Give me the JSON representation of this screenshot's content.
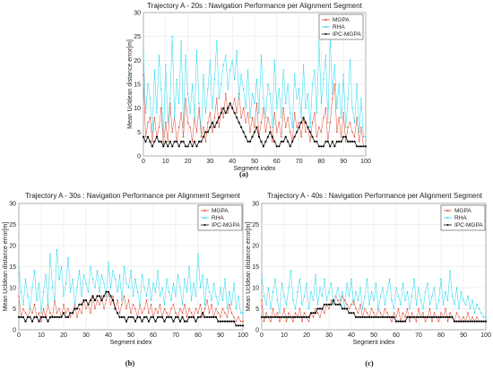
{
  "colors": {
    "MGPA": "#e0442c",
    "RHA": "#22d8f0",
    "IPC-MGPA": "#000000"
  },
  "chart_data": [
    {
      "type": "line",
      "panel_label": "(a)",
      "title": "Trajectory A - 20s : Navigation Performance per Alignment Segment",
      "xlabel": "Segment index",
      "ylabel": "Mean Ucldean distance error[m]",
      "xlim": [
        0,
        100
      ],
      "ylim": [
        0,
        30
      ],
      "xticks": [
        "0",
        "10",
        "20",
        "30",
        "40",
        "50",
        "60",
        "70",
        "80",
        "90",
        "100"
      ],
      "yticks": [
        "0",
        "5",
        "10",
        "15",
        "20",
        "25",
        "30"
      ],
      "grid": true,
      "legend": "top-right",
      "series": [
        {
          "name": "MGPA",
          "values": [
            17,
            4,
            7,
            8,
            3,
            8,
            4,
            6,
            10,
            2,
            7,
            3,
            11,
            5,
            8,
            3,
            6,
            9,
            4,
            12,
            7,
            6,
            3,
            8,
            5,
            10,
            4,
            6,
            3,
            7,
            9,
            5,
            8,
            12,
            6,
            10,
            8,
            13,
            9,
            11,
            10,
            12,
            9,
            13,
            8,
            10,
            7,
            9,
            5,
            8,
            6,
            11,
            4,
            7,
            10,
            5,
            8,
            6,
            3,
            9,
            5,
            7,
            4,
            10,
            6,
            8,
            5,
            3,
            9,
            6,
            7,
            4,
            8,
            5,
            6,
            3,
            7,
            9,
            4,
            6,
            5,
            8,
            10,
            3,
            7,
            12,
            15,
            5,
            8,
            4,
            9,
            3,
            6,
            7,
            5,
            4,
            8,
            3,
            6,
            2,
            2
          ]
        },
        {
          "name": "RHA",
          "values": [
            22,
            9,
            15,
            12,
            5,
            18,
            9,
            21,
            14,
            4,
            19,
            7,
            12,
            25,
            8,
            16,
            11,
            24,
            6,
            21,
            13,
            9,
            15,
            8,
            22,
            11,
            5,
            17,
            9,
            14,
            20,
            10,
            16,
            24,
            12,
            15,
            19,
            21,
            14,
            18,
            20,
            16,
            22,
            12,
            17,
            14,
            10,
            18,
            8,
            13,
            11,
            16,
            9,
            21,
            12,
            8,
            15,
            13,
            6,
            20,
            10,
            14,
            8,
            18,
            11,
            15,
            9,
            6,
            17,
            12,
            14,
            8,
            19,
            10,
            13,
            6,
            15,
            18,
            9,
            24,
            11,
            16,
            21,
            7,
            25,
            13,
            19,
            10,
            15,
            8,
            17,
            6,
            12,
            20,
            10,
            7,
            15,
            5,
            12,
            4,
            4
          ]
        },
        {
          "name": "IPC-MGPA",
          "values": [
            4,
            3,
            4,
            3,
            2,
            3,
            4,
            3,
            3,
            2,
            3,
            2,
            3,
            2,
            3,
            3,
            2,
            3,
            3,
            2,
            2,
            3,
            2,
            3,
            2,
            3,
            3,
            4,
            5,
            5,
            6,
            7,
            6,
            7,
            8,
            9,
            10,
            9,
            10,
            11,
            10,
            9,
            8,
            7,
            6,
            5,
            4,
            3,
            3,
            4,
            5,
            6,
            4,
            3,
            2,
            3,
            4,
            5,
            4,
            3,
            2,
            2,
            3,
            3,
            4,
            3,
            2,
            3,
            4,
            5,
            6,
            7,
            8,
            7,
            6,
            5,
            4,
            3,
            3,
            2,
            2,
            2,
            3,
            3,
            2,
            3,
            2,
            3,
            3,
            3,
            4,
            4,
            3,
            3,
            3,
            3,
            2,
            2,
            2,
            2,
            2
          ]
        }
      ]
    },
    {
      "type": "line",
      "panel_label": "(b)",
      "title": "Trajectory A - 30s : Navigation Performance per Alignment Segment",
      "xlabel": "Segment index",
      "ylabel": "Mean Ucldean distance error[m]",
      "xlim": [
        0,
        100
      ],
      "ylim": [
        0,
        30
      ],
      "xticks": [
        "0",
        "10",
        "20",
        "30",
        "40",
        "50",
        "60",
        "70",
        "80",
        "90",
        "100"
      ],
      "yticks": [
        "0",
        "5",
        "10",
        "15",
        "20",
        "25",
        "30"
      ],
      "grid": true,
      "legend": "top-right",
      "series": [
        {
          "name": "MGPA",
          "values": [
            8,
            3,
            5,
            4,
            3,
            5,
            4,
            6,
            3,
            4,
            2,
            5,
            3,
            6,
            4,
            3,
            7,
            4,
            5,
            3,
            6,
            4,
            5,
            3,
            4,
            6,
            3,
            5,
            4,
            7,
            5,
            6,
            4,
            8,
            5,
            7,
            6,
            8,
            5,
            7,
            9,
            6,
            8,
            5,
            7,
            4,
            6,
            8,
            5,
            7,
            4,
            6,
            5,
            3,
            6,
            4,
            5,
            7,
            4,
            6,
            3,
            5,
            4,
            6,
            3,
            5,
            4,
            3,
            5,
            6,
            4,
            3,
            5,
            4,
            6,
            3,
            5,
            4,
            3,
            5,
            4,
            6,
            3,
            5,
            7,
            4,
            6,
            3,
            5,
            4,
            3,
            5,
            4,
            3,
            6,
            4,
            3,
            2,
            3,
            2,
            2
          ]
        },
        {
          "name": "RHA",
          "values": [
            15,
            9,
            6,
            12,
            8,
            5,
            10,
            14,
            7,
            11,
            4,
            9,
            13,
            6,
            18,
            10,
            7,
            19,
            12,
            15,
            8,
            11,
            17,
            9,
            12,
            6,
            10,
            14,
            8,
            13,
            11,
            9,
            15,
            12,
            10,
            14,
            9,
            13,
            11,
            8,
            16,
            10,
            14,
            12,
            9,
            13,
            7,
            15,
            11,
            10,
            14,
            8,
            12,
            9,
            6,
            13,
            10,
            8,
            12,
            7,
            11,
            9,
            14,
            8,
            10,
            6,
            12,
            9,
            7,
            11,
            8,
            13,
            10,
            6,
            12,
            9,
            15,
            7,
            11,
            8,
            18,
            10,
            13,
            6,
            12,
            9,
            7,
            11,
            8,
            6,
            10,
            7,
            12,
            5,
            9,
            6,
            11,
            5,
            8,
            4,
            4
          ]
        },
        {
          "name": "IPC-MGPA",
          "values": [
            3,
            3,
            3,
            2,
            3,
            3,
            2,
            3,
            3,
            2,
            3,
            3,
            3,
            2,
            3,
            3,
            3,
            3,
            3,
            3,
            4,
            3,
            3,
            4,
            4,
            5,
            5,
            6,
            6,
            7,
            7,
            6,
            7,
            8,
            7,
            8,
            8,
            7,
            8,
            9,
            9,
            8,
            7,
            5,
            4,
            3,
            3,
            3,
            2,
            3,
            3,
            3,
            2,
            3,
            3,
            2,
            3,
            3,
            2,
            3,
            3,
            2,
            3,
            3,
            3,
            2,
            3,
            3,
            3,
            2,
            3,
            3,
            2,
            3,
            2,
            2,
            3,
            3,
            3,
            2,
            3,
            3,
            4,
            3,
            3,
            3,
            3,
            3,
            3,
            2,
            2,
            2,
            2,
            2,
            2,
            2,
            2,
            1,
            1,
            1,
            1
          ]
        }
      ]
    },
    {
      "type": "line",
      "panel_label": "(c)",
      "title": "Trajectory A - 40s : Navigation Performance per Alignment Segment",
      "xlabel": "Segment index",
      "ylabel": "Mean Ucldean distance error[m]",
      "xlim": [
        0,
        100
      ],
      "ylim": [
        0,
        30
      ],
      "xticks": [
        "0",
        "10",
        "20",
        "30",
        "40",
        "50",
        "60",
        "70",
        "80",
        "90",
        "100"
      ],
      "yticks": [
        "0",
        "5",
        "10",
        "15",
        "20",
        "25",
        "30"
      ],
      "grid": true,
      "legend": "top-right",
      "series": [
        {
          "name": "MGPA",
          "values": [
            7,
            2,
            4,
            3,
            2,
            5,
            3,
            4,
            2,
            3,
            5,
            2,
            4,
            3,
            2,
            4,
            3,
            5,
            2,
            4,
            3,
            2,
            4,
            3,
            5,
            4,
            3,
            5,
            4,
            6,
            5,
            7,
            6,
            8,
            7,
            6,
            8,
            7,
            6,
            5,
            6,
            7,
            5,
            4,
            6,
            3,
            5,
            4,
            3,
            5,
            4,
            3,
            5,
            4,
            3,
            5,
            4,
            3,
            2,
            4,
            3,
            5,
            2,
            4,
            3,
            5,
            2,
            4,
            3,
            2,
            5,
            3,
            4,
            2,
            3,
            5,
            2,
            4,
            3,
            2,
            4,
            3,
            5,
            2,
            4,
            3,
            2,
            4,
            3,
            2,
            3,
            2,
            4,
            2,
            3,
            2,
            3,
            2,
            2,
            2,
            2
          ]
        },
        {
          "name": "RHA",
          "values": [
            13,
            8,
            6,
            10,
            5,
            9,
            12,
            7,
            4,
            11,
            8,
            6,
            10,
            14,
            7,
            5,
            9,
            12,
            6,
            8,
            11,
            5,
            9,
            7,
            13,
            6,
            10,
            8,
            12,
            7,
            9,
            11,
            6,
            8,
            10,
            7,
            9,
            5,
            11,
            8,
            12,
            6,
            9,
            7,
            10,
            5,
            8,
            12,
            6,
            9,
            7,
            11,
            5,
            8,
            10,
            6,
            9,
            12,
            7,
            5,
            10,
            8,
            6,
            11,
            7,
            9,
            5,
            8,
            12,
            6,
            10,
            7,
            5,
            9,
            11,
            6,
            8,
            10,
            5,
            7,
            12,
            6,
            9,
            7,
            14,
            8,
            6,
            10,
            5,
            9,
            7,
            6,
            8,
            5,
            7,
            4,
            6,
            5,
            4,
            3,
            3
          ]
        },
        {
          "name": "IPC-MGPA",
          "values": [
            3,
            3,
            3,
            3,
            3,
            3,
            3,
            3,
            3,
            3,
            3,
            3,
            3,
            3,
            3,
            3,
            3,
            3,
            3,
            3,
            3,
            3,
            4,
            4,
            4,
            5,
            5,
            5,
            6,
            6,
            6,
            6,
            7,
            6,
            6,
            6,
            5,
            5,
            5,
            4,
            4,
            4,
            3,
            3,
            3,
            3,
            3,
            3,
            3,
            3,
            3,
            3,
            3,
            3,
            3,
            3,
            3,
            3,
            3,
            3,
            2,
            2,
            2,
            2,
            2,
            3,
            3,
            3,
            3,
            3,
            3,
            3,
            3,
            3,
            3,
            3,
            3,
            3,
            3,
            3,
            3,
            3,
            3,
            3,
            3,
            3,
            2,
            2,
            2,
            2,
            2,
            2,
            2,
            2,
            2,
            2,
            2,
            2,
            2,
            2,
            2
          ]
        }
      ]
    }
  ]
}
